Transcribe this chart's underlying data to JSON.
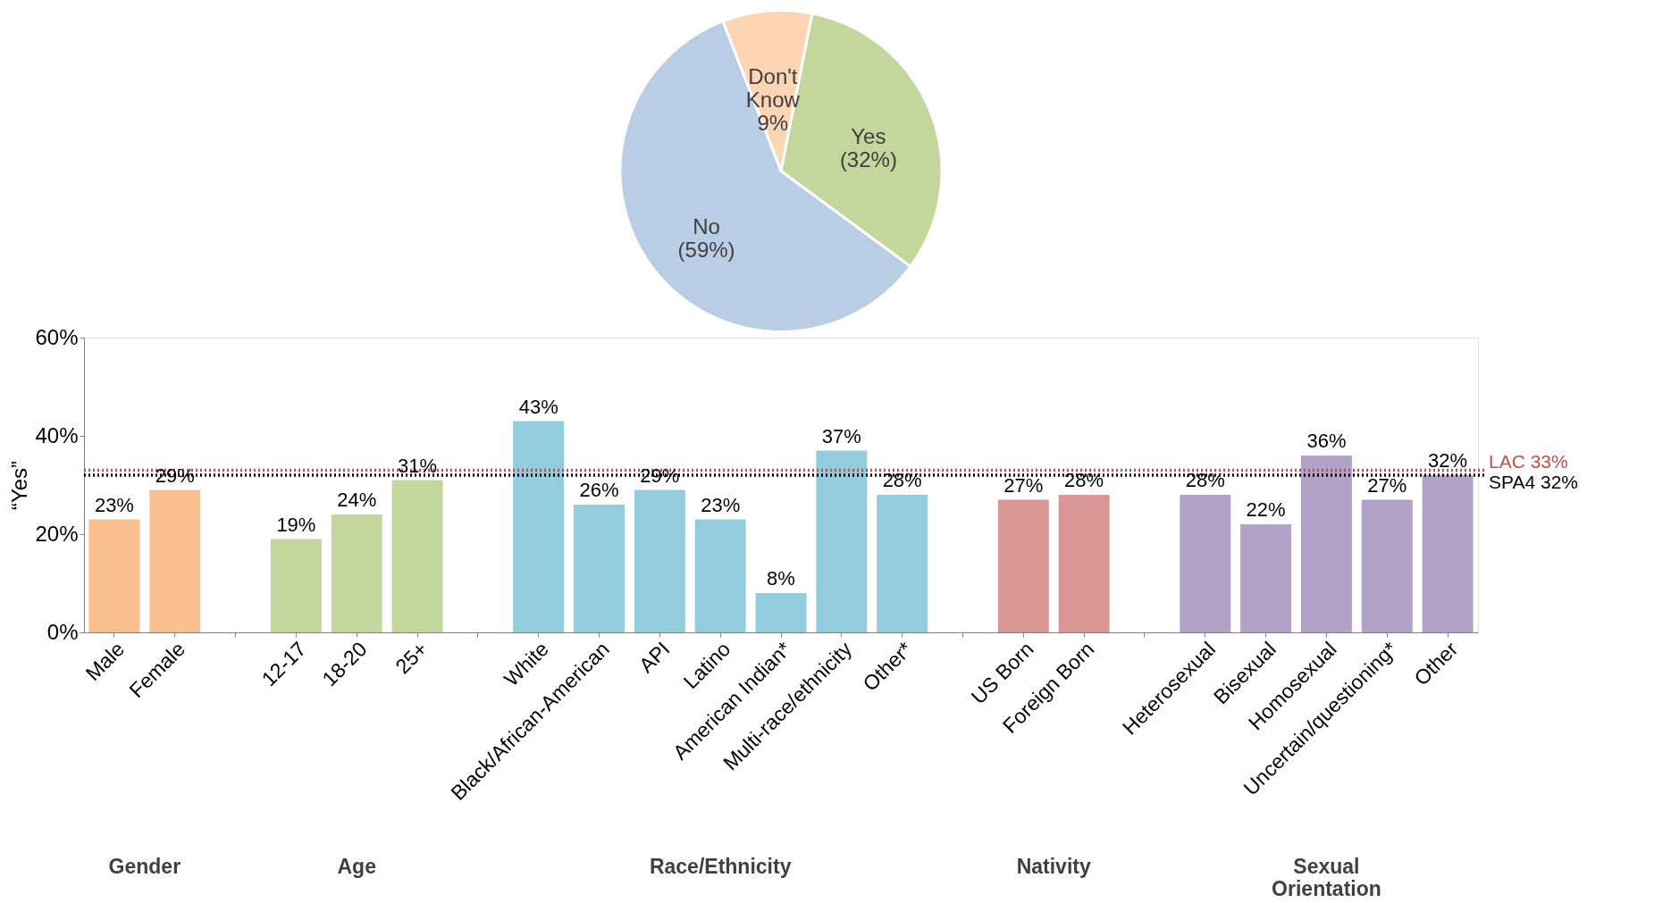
{
  "chart_data": [
    {
      "type": "pie",
      "categories": [
        "Don't Know",
        "Yes",
        "No"
      ],
      "values": [
        9,
        32,
        59
      ],
      "value_labels": [
        "9%",
        "(32%)",
        "(59%)"
      ],
      "colors": [
        "#fcd5b5",
        "#c3d69b",
        "#b9cde5"
      ]
    },
    {
      "type": "bar",
      "ylabel": "“Yes”",
      "categories": [
        "Male",
        "Female",
        null,
        "12-17",
        "18-20",
        "25+",
        null,
        "White",
        "Black/African-American",
        "API",
        "Latino",
        "American Indian*",
        "Multi-race/ethnicity",
        "Other*",
        null,
        "US Born",
        "Foreign Born",
        null,
        "Heterosexual",
        "Bisexual",
        "Homosexual",
        "Uncertain/questioning*",
        "Other"
      ],
      "values": [
        23,
        29,
        null,
        19,
        24,
        31,
        null,
        43,
        26,
        29,
        23,
        8,
        37,
        28,
        null,
        27,
        28,
        null,
        28,
        22,
        36,
        27,
        32
      ],
      "value_labels": [
        "23%",
        "29%",
        null,
        "19%",
        "24%",
        "31%",
        null,
        "43%",
        "26%",
        "29%",
        "23%",
        "8%",
        "37%",
        "28%",
        null,
        "27%",
        "28%",
        null,
        "28%",
        "22%",
        "36%",
        "27%",
        "32%"
      ],
      "colors": [
        "#fac090",
        "#fac090",
        null,
        "#c3d69b",
        "#c3d69b",
        "#c3d69b",
        null,
        "#93cddd",
        "#93cddd",
        "#93cddd",
        "#93cddd",
        "#93cddd",
        "#93cddd",
        "#93cddd",
        null,
        "#d99694",
        "#d99694",
        null,
        "#b3a2c7",
        "#b3a2c7",
        "#b3a2c7",
        "#b3a2c7",
        "#b3a2c7"
      ],
      "ylim": [
        0,
        60
      ],
      "yticks": [
        {
          "value": 0,
          "label": "0%"
        },
        {
          "value": 20,
          "label": "20%"
        },
        {
          "value": 40,
          "label": "40%"
        },
        {
          "value": 60,
          "label": "60%"
        }
      ],
      "grid": false,
      "ref_lines": [
        {
          "axis": "y",
          "value": 33,
          "label": "LAC 33%",
          "color": "#c0504d",
          "line_style": "dotted"
        },
        {
          "axis": "y",
          "value": 32,
          "label": "SPA4 32%",
          "color": "#000000",
          "line_style": "dotted"
        }
      ],
      "annotations": [
        "Gender",
        "Age",
        "Race/Ethnicity",
        "Nativity",
        "Sexual Orientation"
      ]
    }
  ]
}
